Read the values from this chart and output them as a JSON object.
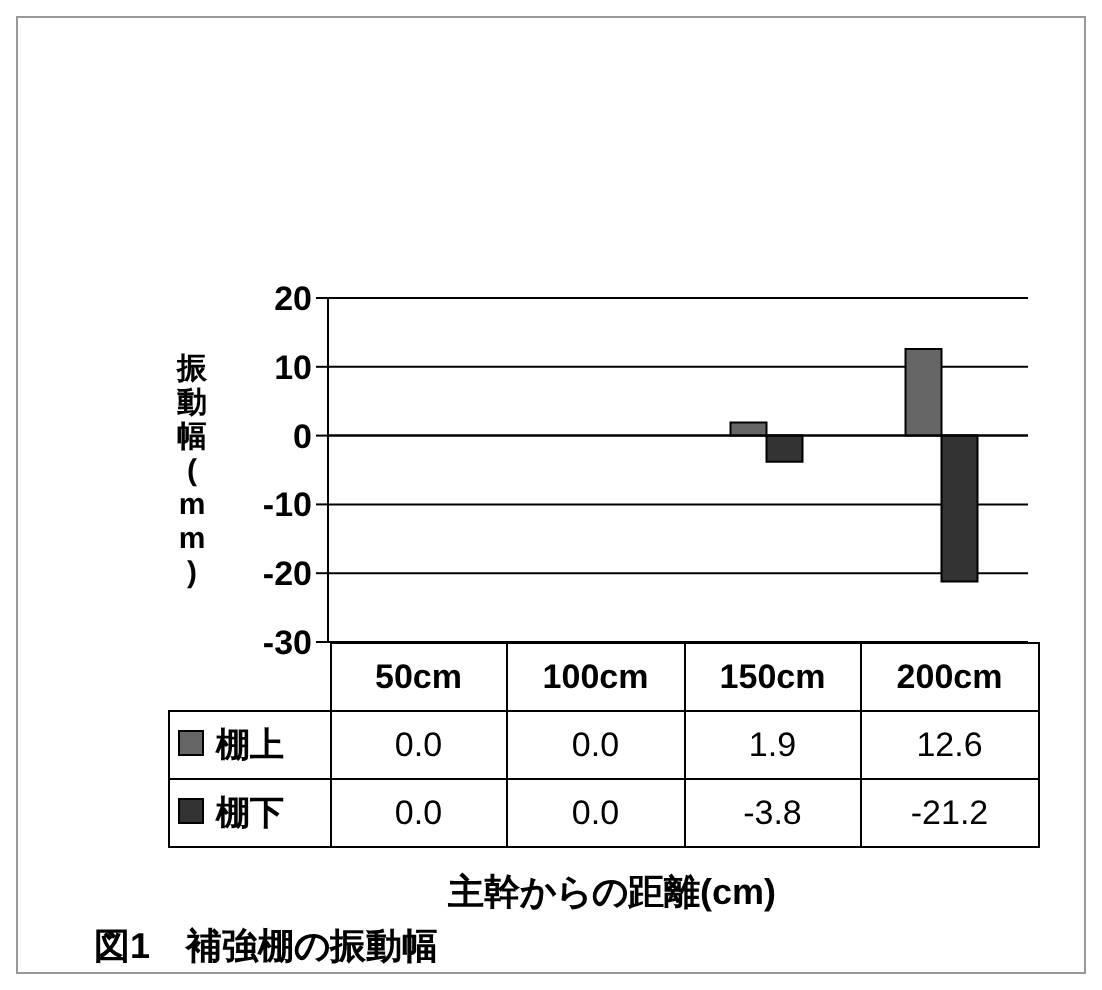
{
  "chart_data": {
    "type": "bar",
    "ylabel": "振動幅(mm)",
    "xlabel": "主幹からの距離(cm)",
    "annotations": [
      "図1　補強棚の振動幅"
    ],
    "categories": [
      "50cm",
      "100cm",
      "150cm",
      "200cm"
    ],
    "series": [
      {
        "name": "棚上",
        "color": "#666666",
        "values": [
          0.0,
          0.0,
          1.9,
          12.6
        ],
        "value_labels": [
          "0.0",
          "0.0",
          "1.9",
          "12.6"
        ]
      },
      {
        "name": "棚下",
        "color": "#333333",
        "values": [
          0.0,
          0.0,
          -3.8,
          -21.2
        ],
        "value_labels": [
          "0.0",
          "0.0",
          "-3.8",
          "-21.2"
        ]
      }
    ],
    "ylim": [
      -30,
      20
    ],
    "yticks": [
      -30,
      -20,
      -10,
      0,
      10,
      20
    ],
    "grid": "y",
    "legend": "bottom"
  }
}
